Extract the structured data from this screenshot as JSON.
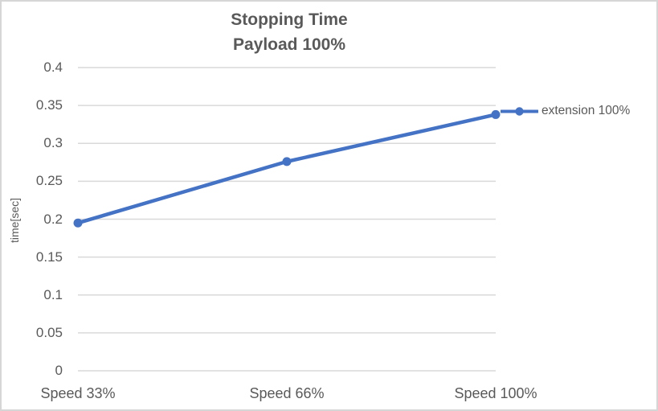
{
  "chart": {
    "title_line1": "Stopping Time",
    "title_line2": "Payload 100%",
    "y_axis_title": "time[sec]",
    "legend_label": "extension 100%"
  },
  "chart_data": {
    "type": "line",
    "title": "Stopping Time\nPayload 100%",
    "categories": [
      "Speed 33%",
      "Speed 66%",
      "Speed 100%"
    ],
    "series": [
      {
        "name": "extension 100%",
        "values": [
          0.195,
          0.276,
          0.338
        ]
      }
    ],
    "xlabel": "",
    "ylabel": "time[sec]",
    "ylim": [
      0,
      0.4
    ],
    "ytick_step": 0.05,
    "ytick_labels": [
      "0",
      "0.05",
      "0.1",
      "0.15",
      "0.2",
      "0.25",
      "0.3",
      "0.35",
      "0.4"
    ],
    "grid": true,
    "legend_position": "right",
    "marker": "circle",
    "colors": {
      "series": "#4472C4",
      "grid": "#D9D9D9",
      "text": "#595959",
      "border": "#D6D6D6",
      "background": "#FFFFFF"
    }
  }
}
